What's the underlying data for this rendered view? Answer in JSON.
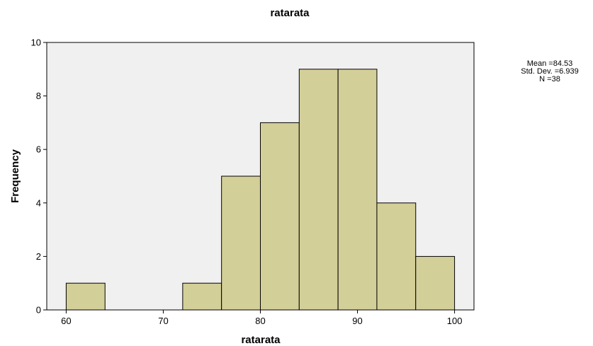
{
  "chart_data": {
    "type": "bar",
    "title": "ratarata",
    "xlabel": "ratarata",
    "ylabel": "Frequency",
    "bin_width": 4,
    "bins": [
      {
        "start": 60,
        "end": 64,
        "count": 1
      },
      {
        "start": 64,
        "end": 68,
        "count": 0
      },
      {
        "start": 68,
        "end": 72,
        "count": 0
      },
      {
        "start": 72,
        "end": 76,
        "count": 1
      },
      {
        "start": 76,
        "end": 80,
        "count": 5
      },
      {
        "start": 80,
        "end": 84,
        "count": 7
      },
      {
        "start": 84,
        "end": 88,
        "count": 9
      },
      {
        "start": 88,
        "end": 92,
        "count": 9
      },
      {
        "start": 92,
        "end": 96,
        "count": 4
      },
      {
        "start": 96,
        "end": 100,
        "count": 2
      }
    ],
    "xlim": [
      58,
      102
    ],
    "ylim": [
      0,
      10
    ],
    "x_ticks": [
      "60",
      "70",
      "80",
      "90",
      "100"
    ],
    "y_ticks": [
      "0",
      "2",
      "4",
      "6",
      "8",
      "10"
    ],
    "grid": false,
    "legend_position": "top-right",
    "stats": {
      "mean": "Mean =84.53",
      "std_dev": "Std. Dev. =6.939",
      "n": "N =38"
    },
    "colors": {
      "bar_fill": "#d3cf98",
      "bar_stroke": "#000000",
      "plot_background": "#f0f0f0",
      "page_background": "#ffffff"
    }
  }
}
